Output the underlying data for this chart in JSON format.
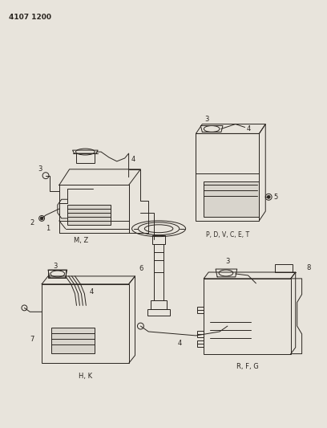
{
  "title_code": "4107 1200",
  "bg_color": "#e8e4dc",
  "line_color": "#2a2520",
  "label_color": "#2a2520",
  "caption_MZ": "M, Z",
  "caption_PDVCET": "P, D, V, C, E, T",
  "caption_HK": "H, K",
  "caption_RFG": "R, F, G",
  "part_label_6": "6",
  "part_label_1": "1",
  "part_label_2": "2",
  "part_label_3": "3",
  "part_label_4": "4",
  "part_label_5": "5",
  "part_label_7": "7",
  "part_label_8": "8"
}
